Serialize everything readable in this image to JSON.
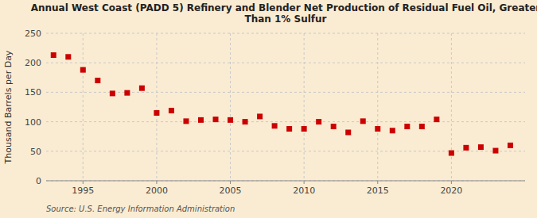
{
  "chart_data": {
    "type": "scatter",
    "title": "Annual West Coast (PADD 5) Refinery and Blender Net Production of Residual Fuel Oil, Greater\nThan 1% Sulfur",
    "y_label": "Thousand Barrels per Day",
    "annotations": [
      "Source: U.S. Energy Information Administration"
    ],
    "x": [
      1993,
      1994,
      1995,
      1996,
      1997,
      1998,
      1999,
      2000,
      2001,
      2002,
      2003,
      2004,
      2005,
      2006,
      2007,
      2008,
      2009,
      2010,
      2011,
      2012,
      2013,
      2014,
      2015,
      2016,
      2017,
      2018,
      2019,
      2020,
      2021,
      2022,
      2023,
      2024
    ],
    "values": [
      213,
      210,
      188,
      170,
      148,
      149,
      157,
      115,
      119,
      101,
      103,
      104,
      103,
      100,
      109,
      93,
      88,
      88,
      100,
      92,
      82,
      101,
      88,
      85,
      92,
      92,
      104,
      47,
      56,
      57,
      51,
      60
    ],
    "color": "#cc0000",
    "marker": "square",
    "xlim": [
      1992.5,
      2025
    ],
    "xticks": [
      1995,
      2000,
      2005,
      2010,
      2015,
      2020
    ],
    "ylim": [
      0,
      250
    ],
    "yticks": [
      0,
      50,
      100,
      150,
      200,
      250
    ],
    "grid": true
  }
}
